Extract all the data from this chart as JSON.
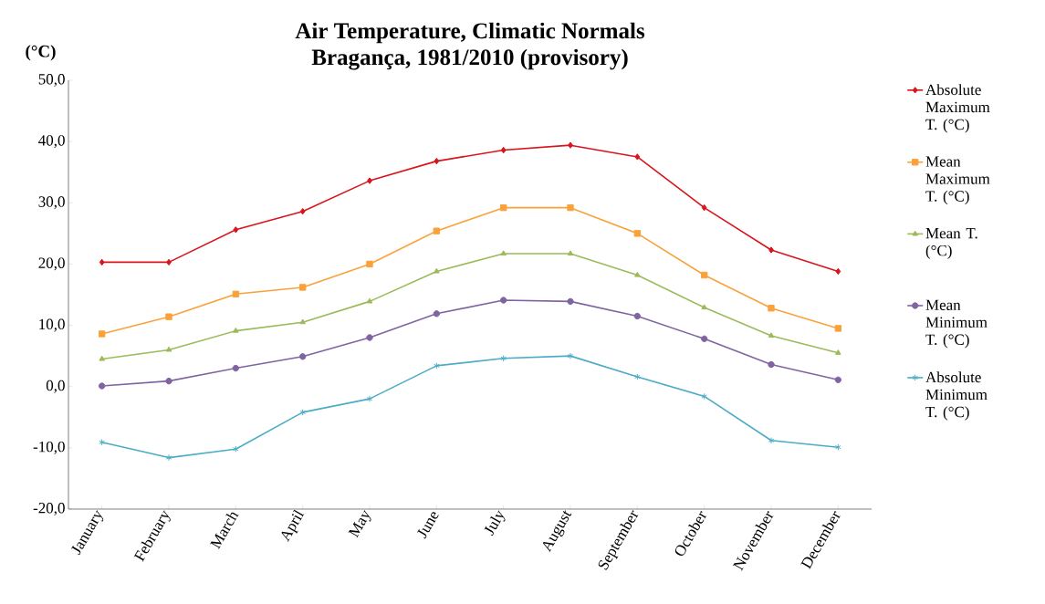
{
  "chart_data": {
    "type": "line",
    "title": "Air Temperature, Climatic Normals",
    "subtitle": "Bragança, 1981/2010 (provisory)",
    "ylabel": "(°C)",
    "categories": [
      "January",
      "February",
      "March",
      "April",
      "May",
      "June",
      "July",
      "August",
      "September",
      "October",
      "November",
      "December"
    ],
    "ylim": [
      -20,
      50
    ],
    "yticks": [
      {
        "value": -20,
        "label": "-20,0"
      },
      {
        "value": -10,
        "label": "-10,0"
      },
      {
        "value": 0,
        "label": "0,0"
      },
      {
        "value": 10,
        "label": "10,0"
      },
      {
        "value": 20,
        "label": "20,0"
      },
      {
        "value": 30,
        "label": "30,0"
      },
      {
        "value": 40,
        "label": "40,0"
      },
      {
        "value": 50,
        "label": "50,0"
      }
    ],
    "legend": "right",
    "grid": false,
    "series": [
      {
        "name": "Absolute Maximum T. (°C)",
        "color": "#d9141b",
        "marker": "diamond",
        "values": [
          20.3,
          20.3,
          25.6,
          28.6,
          33.6,
          36.8,
          38.6,
          39.4,
          37.5,
          29.2,
          22.3,
          18.8
        ]
      },
      {
        "name": "Mean Maximum T. (°C)",
        "color": "#f9a23b",
        "marker": "square",
        "values": [
          8.6,
          11.4,
          15.1,
          16.2,
          20.0,
          25.4,
          29.2,
          29.2,
          25.0,
          18.2,
          12.8,
          9.5
        ]
      },
      {
        "name": "Mean T. (°C)",
        "color": "#9bbb59",
        "marker": "triangle",
        "values": [
          4.5,
          6.0,
          9.1,
          10.5,
          13.9,
          18.8,
          21.7,
          21.7,
          18.2,
          12.9,
          8.3,
          5.5
        ]
      },
      {
        "name": "Mean Minimum T. (°C)",
        "color": "#8064a2",
        "marker": "circle",
        "values": [
          0.1,
          0.9,
          3.0,
          4.9,
          8.0,
          11.9,
          14.1,
          13.9,
          11.5,
          7.8,
          3.6,
          1.1
        ]
      },
      {
        "name": "Absolute Minimum T. (°C)",
        "color": "#4bacc6",
        "marker": "cross",
        "values": [
          -9.1,
          -11.6,
          -10.2,
          -4.2,
          -2.0,
          3.4,
          4.6,
          5.0,
          1.6,
          -1.6,
          -8.8,
          -9.9
        ]
      }
    ]
  }
}
